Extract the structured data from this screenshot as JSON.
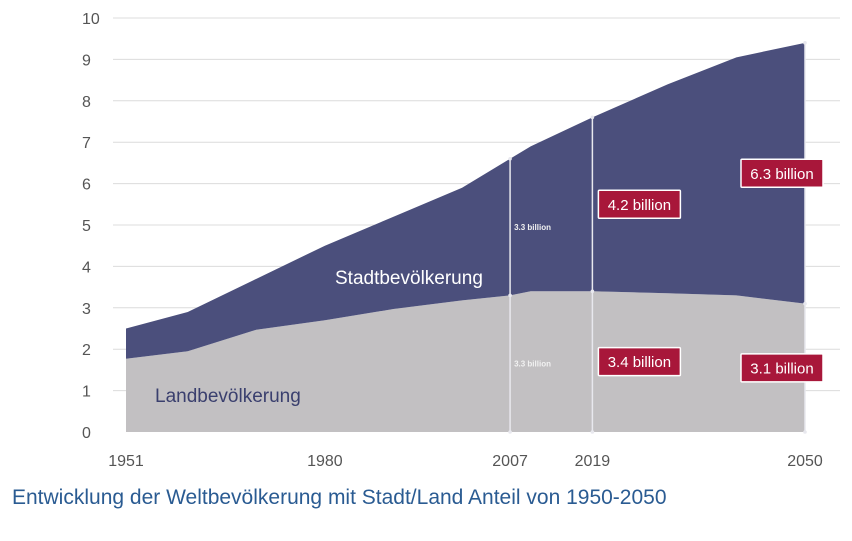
{
  "caption": "Entwicklung der Weltbevölkerung mit Stadt/Land Anteil von 1950-2050",
  "colors": {
    "urban": "#4b4f7c",
    "rural": "#c2c0c2",
    "annotation": "#a8173a"
  },
  "chart_data": {
    "type": "area",
    "stacked": true,
    "title": "",
    "xlabel": "",
    "ylabel": "",
    "xlim": [
      1951,
      2050
    ],
    "ylim": [
      0,
      10
    ],
    "yticks": [
      "0",
      "1",
      "2",
      "3",
      "4",
      "5",
      "6",
      "7",
      "8",
      "9",
      "10"
    ],
    "xticks": [
      "1951",
      "1980",
      "2007",
      "2019",
      "2050"
    ],
    "grid": "horizontal",
    "series": [
      {
        "name": "Landbevölkerung",
        "x": [
          1951,
          1960,
          1970,
          1980,
          1990,
          2000,
          2007,
          2010,
          2019,
          2030,
          2040,
          2050
        ],
        "values": [
          1.77,
          1.95,
          2.47,
          2.7,
          2.97,
          3.18,
          3.3,
          3.4,
          3.4,
          3.35,
          3.3,
          3.1
        ]
      },
      {
        "name": "Stadtbevölkerung",
        "x": [
          1951,
          1960,
          1970,
          1980,
          1990,
          2000,
          2007,
          2010,
          2019,
          2030,
          2040,
          2050
        ],
        "values": [
          0.73,
          0.95,
          1.23,
          1.8,
          2.23,
          2.72,
          3.3,
          3.5,
          4.2,
          5.05,
          5.75,
          6.3
        ]
      }
    ],
    "annotations": [
      {
        "year": 2007,
        "urban": "3.3 billion",
        "rural": "3.3 billion",
        "style": "small"
      },
      {
        "year": 2019,
        "urban": "4.2 billion",
        "rural": "3.4 billion",
        "style": "box"
      },
      {
        "year": 2050,
        "urban": "6.3 billion",
        "rural": "3.1 billion",
        "style": "box"
      }
    ]
  }
}
